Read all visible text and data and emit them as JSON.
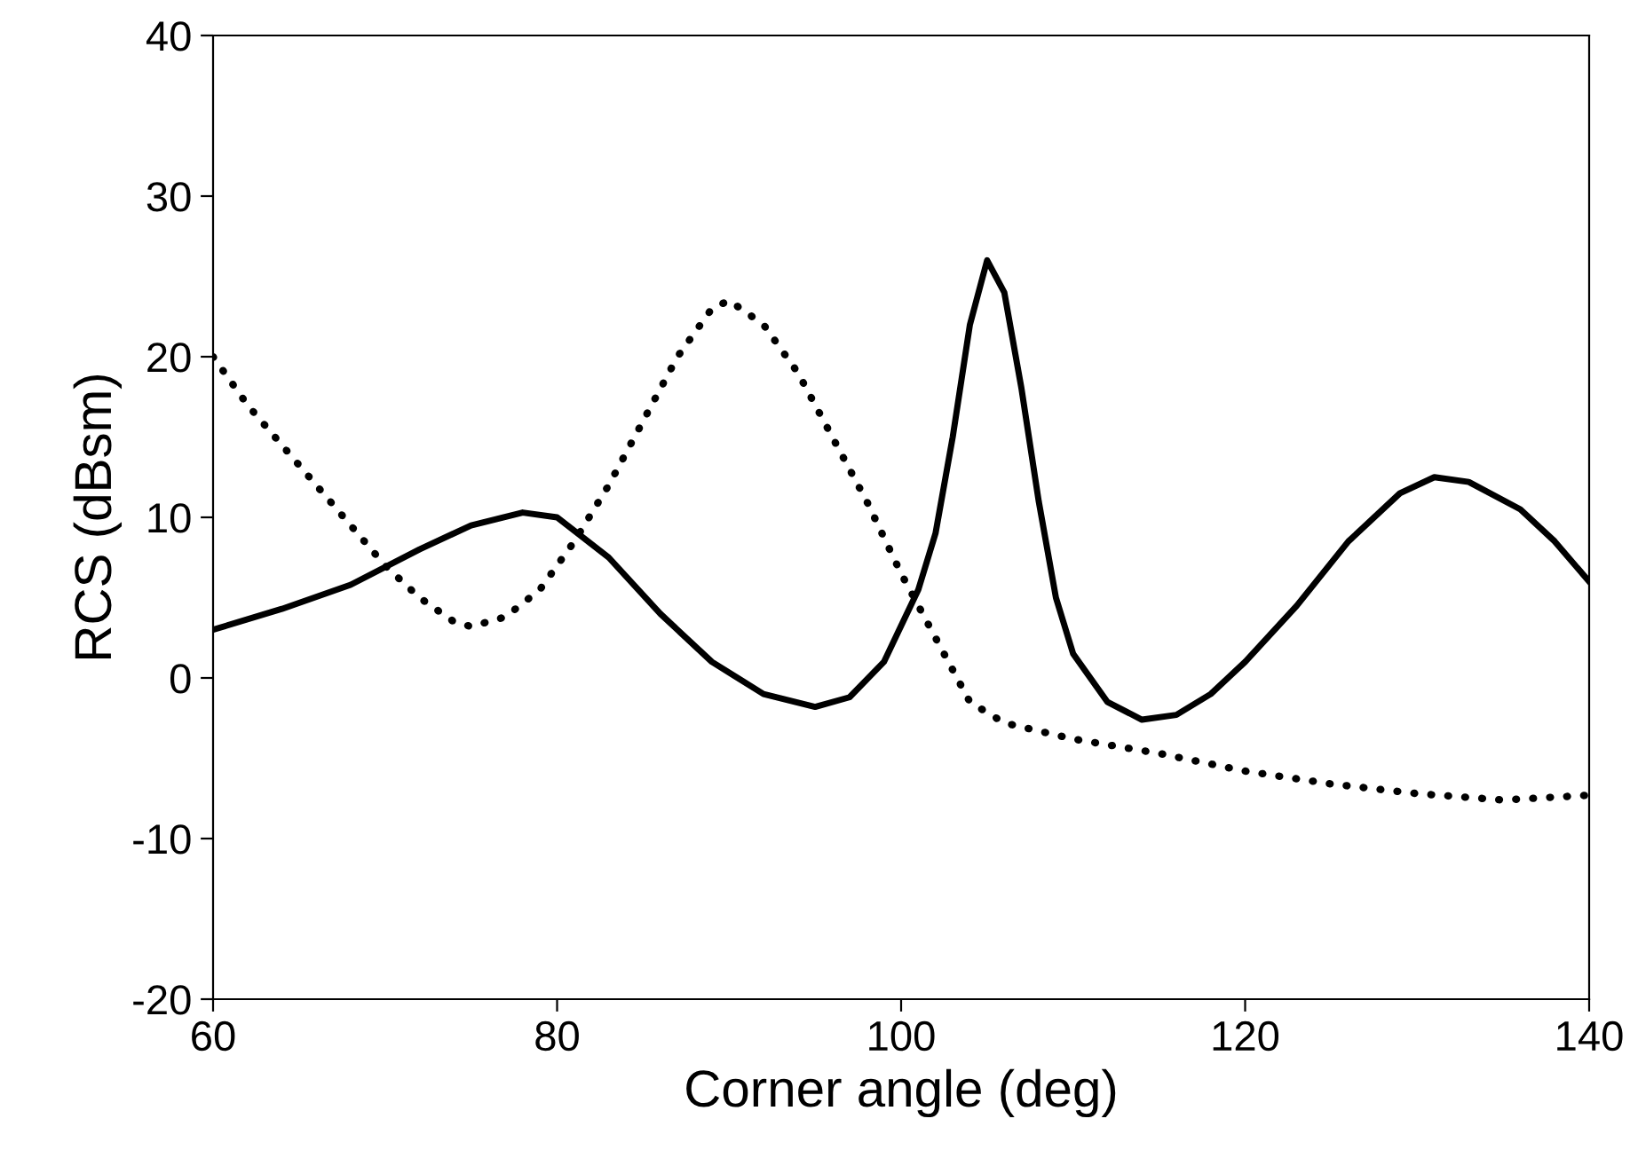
{
  "chart_data": {
    "type": "line",
    "xlabel": "Corner angle (deg)",
    "ylabel": "RCS (dBsm)",
    "xlim": [
      60,
      140
    ],
    "xticks": [
      60,
      80,
      100,
      120,
      140
    ],
    "ylim": [
      -20,
      40
    ],
    "yticks": [
      -20,
      -10,
      0,
      10,
      20,
      30,
      40
    ],
    "grid": false,
    "legend": false,
    "marker": "none",
    "series": [
      {
        "color": "#000000",
        "line_style": "solid",
        "x": [
          60,
          64,
          68,
          72,
          75,
          78,
          80,
          83,
          86,
          89,
          92,
          95,
          97,
          99,
          101,
          102,
          103,
          104,
          105,
          106,
          107,
          108,
          109,
          110,
          112,
          114,
          116,
          118,
          120,
          123,
          126,
          129,
          131,
          133,
          136,
          138,
          140
        ],
        "values": [
          3,
          4.3,
          5.8,
          8,
          9.5,
          10.3,
          10,
          7.5,
          4,
          1,
          -1,
          -1.8,
          -1.2,
          1,
          5.5,
          9,
          15,
          22,
          26,
          24,
          18,
          11,
          5,
          1.5,
          -1.5,
          -2.6,
          -2.3,
          -1,
          1,
          4.5,
          8.5,
          11.5,
          12.5,
          12.2,
          10.5,
          8.5,
          6
        ]
      },
      {
        "color": "#000000",
        "line_style": "dotted",
        "x": [
          60,
          62,
          64,
          66,
          68,
          70,
          72,
          74,
          75,
          77,
          79,
          81,
          83,
          85,
          87,
          89,
          90,
          92,
          94,
          96,
          98,
          100,
          102,
          103,
          104,
          106,
          110,
          115,
          120,
          125,
          130,
          135,
          140
        ],
        "values": [
          20,
          17,
          14.5,
          12,
          9.5,
          7,
          5,
          3.5,
          3.2,
          3.8,
          5.5,
          8.5,
          12,
          16,
          20,
          23,
          23.5,
          22,
          19,
          15,
          11,
          6.5,
          2.5,
          0.5,
          -1.5,
          -2.8,
          -3.8,
          -4.7,
          -5.8,
          -6.6,
          -7.2,
          -7.6,
          -7.3
        ]
      }
    ]
  }
}
